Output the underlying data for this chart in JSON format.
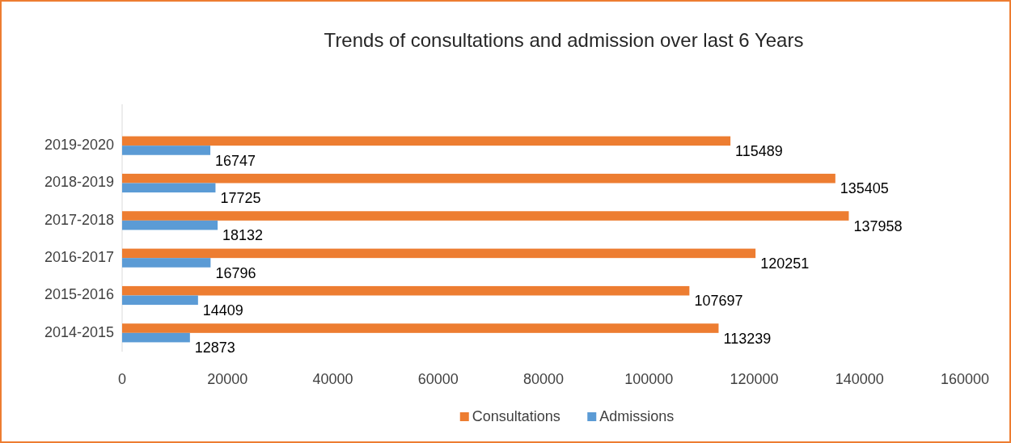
{
  "chart_data": {
    "type": "bar",
    "orientation": "horizontal",
    "title": "Trends of consultations and admission over last 6 Years",
    "categories": [
      "2019-2020",
      "2018-2019",
      "2017-2018",
      "2016-2017",
      "2015-2016",
      "2014-2015"
    ],
    "series": [
      {
        "name": "Consultations",
        "color": "#ed7d31",
        "values": [
          115489,
          135405,
          137958,
          120251,
          107697,
          113239
        ]
      },
      {
        "name": "Admissions",
        "color": "#5b9bd5",
        "values": [
          16747,
          17725,
          18132,
          16796,
          14409,
          12873
        ]
      }
    ],
    "xlim": [
      0,
      160000
    ],
    "xticks": [
      0,
      20000,
      40000,
      60000,
      80000,
      100000,
      120000,
      140000,
      160000
    ],
    "data_labels": true,
    "grid": false,
    "legend": "bottom"
  }
}
